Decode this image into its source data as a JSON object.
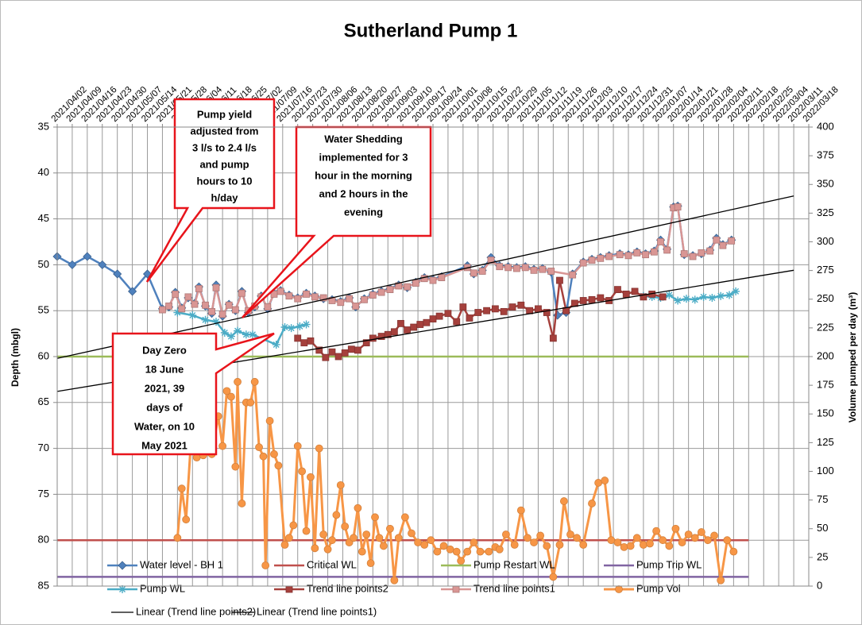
{
  "chart_data": {
    "type": "line",
    "title": "Sutherland Pump 1",
    "y_label": "Depth (mbgl)",
    "y2_label": "Volume pumped per day (m³)",
    "ylim": [
      35,
      85
    ],
    "y_reversed": true,
    "yticks": [
      35,
      40,
      45,
      50,
      55,
      60,
      65,
      70,
      75,
      80,
      85
    ],
    "y2lim": [
      0,
      400
    ],
    "y2ticks": [
      0,
      25,
      50,
      75,
      100,
      125,
      150,
      175,
      200,
      225,
      250,
      275,
      300,
      325,
      350,
      375,
      400
    ],
    "xlim": [
      "2021/04/02",
      "2022/03/18"
    ],
    "xticks": [
      "2021/04/02",
      "2021/04/09",
      "2021/04/16",
      "2021/04/23",
      "2021/04/30",
      "2021/05/07",
      "2021/05/14",
      "2021/05/21",
      "2021/05/28",
      "2021/06/04",
      "2021/06/11",
      "2021/06/18",
      "2021/06/25",
      "2021/07/02",
      "2021/07/09",
      "2021/07/16",
      "2021/07/23",
      "2021/07/30",
      "2021/08/06",
      "2021/08/13",
      "2021/08/20",
      "2021/08/27",
      "2021/09/03",
      "2021/09/10",
      "2021/09/17",
      "2021/09/24",
      "2021/10/01",
      "2021/10/08",
      "2021/10/15",
      "2021/10/22",
      "2021/10/29",
      "2021/11/05",
      "2021/11/12",
      "2021/11/19",
      "2021/11/26",
      "2021/12/03",
      "2021/12/10",
      "2021/12/17",
      "2021/12/24",
      "2021/12/31",
      "2022/01/07",
      "2022/01/14",
      "2022/01/21",
      "2022/01/28",
      "2022/02/04",
      "2022/02/11",
      "2022/02/18",
      "2022/02/25",
      "2022/03/04",
      "2022/03/11",
      "2022/03/18"
    ],
    "grid": true,
    "legend": "bottom",
    "series": [
      {
        "name": "Water level - BH 1",
        "color": "#4f81bd",
        "marker": "diamond",
        "x": [
          "2021/04/02",
          "2021/04/09",
          "2021/04/16",
          "2021/04/23",
          "2021/04/30",
          "2021/05/07",
          "2021/05/14",
          "2021/05/21",
          "2021/05/24",
          "2021/05/27",
          "2021/05/30",
          "2021/06/02",
          "2021/06/05",
          "2021/06/07",
          "2021/06/10",
          "2021/06/13",
          "2021/06/15",
          "2021/06/18",
          "2021/06/21",
          "2021/06/24",
          "2021/06/27",
          "2021/06/30",
          "2021/07/03",
          "2021/07/06",
          "2021/07/09",
          "2021/07/12",
          "2021/07/15",
          "2021/07/19",
          "2021/07/23",
          "2021/07/27",
          "2021/07/31",
          "2021/08/04",
          "2021/08/08",
          "2021/08/12",
          "2021/08/16",
          "2021/08/19",
          "2021/08/23",
          "2021/08/27",
          "2021/08/31",
          "2021/09/04",
          "2021/09/08",
          "2021/09/12",
          "2021/09/16",
          "2021/09/20",
          "2021/09/24",
          "2021/09/28",
          "2021/10/10",
          "2021/10/13",
          "2021/10/17",
          "2021/10/21",
          "2021/10/25",
          "2021/10/29",
          "2021/11/02",
          "2021/11/06",
          "2021/11/10",
          "2021/11/14",
          "2021/11/18",
          "2021/11/21",
          "2021/11/25",
          "2021/11/28",
          "2021/12/03",
          "2021/12/07",
          "2021/12/11",
          "2021/12/15",
          "2021/12/20",
          "2021/12/24",
          "2021/12/28",
          "2022/01/01",
          "2022/01/05",
          "2022/01/08",
          "2022/01/11",
          "2022/01/14",
          "2022/01/16",
          "2022/01/19",
          "2022/01/23",
          "2022/01/27",
          "2022/01/31",
          "2022/02/03",
          "2022/02/06",
          "2022/02/10"
        ],
        "values": [
          49.1,
          50,
          49.1,
          50,
          51,
          52.9,
          51,
          54.8,
          54.6,
          53,
          54.7,
          53.6,
          54.2,
          52.4,
          54.5,
          55.3,
          52.2,
          55.6,
          54.3,
          55,
          52.9,
          55.2,
          54.6,
          53.4,
          54.8,
          53.1,
          52.8,
          53.3,
          53.6,
          53.1,
          53.4,
          53.7,
          53.8,
          54,
          53.6,
          54.6,
          53.7,
          53.2,
          52.9,
          52.6,
          52.2,
          52.5,
          51.9,
          51.4,
          51.6,
          51.3,
          50.1,
          51,
          50.6,
          49.2,
          50.1,
          50.2,
          50.3,
          50.2,
          50.5,
          50.4,
          50.8,
          55.5,
          55.2,
          51,
          49.7,
          49.4,
          49.2,
          49,
          48.8,
          48.9,
          48.6,
          48.8,
          48.5,
          47.3,
          48.3,
          43.7,
          43.6,
          48.9,
          49,
          48.8,
          48.4,
          47.1,
          47.8,
          47.3
        ]
      },
      {
        "name": "Critical WL",
        "color": "#c0504d",
        "marker": "none",
        "x": [
          "2021/04/02",
          "2022/02/18"
        ],
        "values": [
          80,
          80
        ]
      },
      {
        "name": "Pump Restart WL",
        "color": "#9bbb59",
        "marker": "none",
        "x": [
          "2021/04/02",
          "2022/02/18"
        ],
        "values": [
          60,
          60
        ]
      },
      {
        "name": "Pump Trip WL",
        "color": "#8064a2",
        "marker": "none",
        "x": [
          "2021/04/02",
          "2022/02/18"
        ],
        "values": [
          84,
          84
        ]
      },
      {
        "name": "Pump WL",
        "color": "#4bacc6",
        "marker": "asterisk",
        "x": [
          "2021/05/28",
          "2021/06/04",
          "2021/06/10",
          "2021/06/15",
          "2021/06/19",
          "2021/06/22",
          "2021/06/25",
          "2021/06/29",
          "2021/07/02",
          "2021/07/13",
          "2021/07/17",
          "2021/07/20",
          "2021/07/24",
          "2021/07/27",
          "2021/10/15",
          "2021/12/31",
          "2022/01/04",
          "2022/01/08",
          "2022/01/12",
          "2022/01/16",
          "2022/01/20",
          "2022/01/24",
          "2022/01/28",
          "2022/02/01",
          "2022/02/05",
          "2022/02/09",
          "2022/02/12"
        ],
        "values": [
          55.2,
          55.5,
          56,
          56.2,
          57.4,
          57.8,
          57.2,
          57.6,
          57.6,
          58.7,
          56.8,
          56.9,
          56.7,
          56.5,
          null,
          53.4,
          53.5,
          53.6,
          53.3,
          53.9,
          53.7,
          53.8,
          53.5,
          53.6,
          53.4,
          53.3,
          52.9
        ]
      },
      {
        "name": "Trend line points2",
        "color": "#a5403c",
        "marker": "square",
        "x": [
          "2021/07/23",
          "2021/07/26",
          "2021/07/29",
          "2021/08/02",
          "2021/08/05",
          "2021/08/08",
          "2021/08/11",
          "2021/08/14",
          "2021/08/17",
          "2021/08/20",
          "2021/08/24",
          "2021/08/27",
          "2021/08/31",
          "2021/09/03",
          "2021/09/06",
          "2021/09/09",
          "2021/09/12",
          "2021/09/15",
          "2021/09/18",
          "2021/09/21",
          "2021/09/24",
          "2021/09/27",
          "2021/10/01",
          "2021/10/05",
          "2021/10/08",
          "2021/10/11",
          "2021/10/15",
          "2021/10/19",
          "2021/10/23",
          "2021/10/27",
          "2021/10/31",
          "2021/11/04",
          "2021/11/08",
          "2021/11/12",
          "2021/11/16",
          "2021/11/19",
          "2021/11/22",
          "2021/11/25",
          "2021/11/29",
          "2021/12/03",
          "2021/12/07",
          "2021/12/11",
          "2021/12/15",
          "2021/12/19",
          "2021/12/23",
          "2021/12/27",
          "2021/12/31",
          "2022/01/04",
          "2022/01/09"
        ],
        "values": [
          58,
          58.5,
          58.3,
          59.3,
          60.1,
          59.5,
          60,
          59.6,
          59.2,
          59.3,
          58.5,
          58,
          57.8,
          57.6,
          57.3,
          56.4,
          57.1,
          56.8,
          56.5,
          56.3,
          55.9,
          55.6,
          55.3,
          56.2,
          54.6,
          55.8,
          55.2,
          55,
          54.8,
          55.1,
          54.6,
          54.4,
          55,
          54.8,
          55.2,
          58,
          51.7,
          55,
          54.2,
          53.9,
          53.8,
          53.6,
          53.9,
          52.7,
          53.2,
          52.9,
          53.5,
          53.2,
          53.5
        ]
      },
      {
        "name": "Trend line points1",
        "color": "#d99694",
        "marker": "square",
        "x": [
          "2021/05/21",
          "2021/05/24",
          "2021/05/27",
          "2021/05/30",
          "2021/06/02",
          "2021/06/05",
          "2021/06/07",
          "2021/06/10",
          "2021/06/13",
          "2021/06/15",
          "2021/06/18",
          "2021/06/21",
          "2021/06/24",
          "2021/06/27",
          "2021/06/30",
          "2021/07/03",
          "2021/07/06",
          "2021/07/09",
          "2021/07/12",
          "2021/07/15",
          "2021/07/19",
          "2021/07/23",
          "2021/07/27",
          "2021/07/31",
          "2021/08/04",
          "2021/08/08",
          "2021/08/12",
          "2021/08/16",
          "2021/08/19",
          "2021/08/23",
          "2021/08/27",
          "2021/08/31",
          "2021/09/04",
          "2021/09/08",
          "2021/09/12",
          "2021/09/16",
          "2021/09/20",
          "2021/09/24",
          "2021/09/28",
          "2021/10/10",
          "2021/10/13",
          "2021/10/17",
          "2021/10/21",
          "2021/10/25",
          "2021/10/29",
          "2021/11/02",
          "2021/11/06",
          "2021/11/10",
          "2021/11/14",
          "2021/11/18",
          "2021/11/28",
          "2021/12/03",
          "2021/12/07",
          "2021/12/11",
          "2021/12/15",
          "2021/12/20",
          "2021/12/24",
          "2021/12/28",
          "2022/01/01",
          "2022/01/05",
          "2022/01/08",
          "2022/01/11",
          "2022/01/14",
          "2022/01/16",
          "2022/01/19",
          "2022/01/23",
          "2022/01/27",
          "2022/01/31",
          "2022/02/03",
          "2022/02/06",
          "2022/02/10"
        ],
        "values": [
          54.9,
          54.5,
          53.2,
          54.8,
          53.5,
          54.3,
          52.6,
          54.4,
          55.1,
          52.5,
          55.4,
          54.4,
          54.9,
          53.1,
          55,
          54.5,
          53.5,
          54.6,
          53.2,
          52.9,
          53.4,
          53.7,
          53.2,
          53.5,
          53.6,
          53.9,
          54.1,
          53.7,
          54.5,
          53.8,
          53.3,
          53,
          52.7,
          52.3,
          52.4,
          52,
          51.5,
          51.7,
          51.4,
          50.3,
          50.9,
          50.7,
          49.5,
          50.2,
          50.3,
          50.4,
          50.3,
          50.6,
          50.5,
          50.7,
          51.1,
          49.8,
          49.5,
          49.3,
          49.1,
          48.9,
          49,
          48.7,
          48.9,
          48.6,
          47.5,
          48.4,
          43.8,
          43.7,
          48.8,
          49.1,
          48.7,
          48.5,
          47.3,
          47.9,
          47.4
        ]
      },
      {
        "name": "Pump Vol",
        "color": "#f79646",
        "marker": "circle",
        "axis": "y2",
        "x": [
          "2021/05/28",
          "2021/05/30",
          "2021/06/01",
          "2021/06/03",
          "2021/06/06",
          "2021/06/09",
          "2021/06/13",
          "2021/06/16",
          "2021/06/18",
          "2021/06/20",
          "2021/06/22",
          "2021/06/24",
          "2021/06/25",
          "2021/06/27",
          "2021/06/29",
          "2021/07/01",
          "2021/07/03",
          "2021/07/05",
          "2021/07/07",
          "2021/07/08",
          "2021/07/10",
          "2021/07/12",
          "2021/07/14",
          "2021/07/17",
          "2021/07/19",
          "2021/07/21",
          "2021/07/23",
          "2021/07/25",
          "2021/07/27",
          "2021/07/29",
          "2021/07/31",
          "2021/08/02",
          "2021/08/04",
          "2021/08/06",
          "2021/08/08",
          "2021/08/10",
          "2021/08/12",
          "2021/08/14",
          "2021/08/16",
          "2021/08/18",
          "2021/08/20",
          "2021/08/22",
          "2021/08/24",
          "2021/08/26",
          "2021/08/28",
          "2021/08/30",
          "2021/09/01",
          "2021/09/04",
          "2021/09/06",
          "2021/09/08",
          "2021/09/11",
          "2021/09/14",
          "2021/09/17",
          "2021/09/20",
          "2021/09/23",
          "2021/09/26",
          "2021/09/29",
          "2021/10/02",
          "2021/10/05",
          "2021/10/07",
          "2021/10/10",
          "2021/10/13",
          "2021/10/16",
          "2021/10/20",
          "2021/10/23",
          "2021/10/25",
          "2021/10/28",
          "2021/11/01",
          "2021/11/04",
          "2021/11/07",
          "2021/11/10",
          "2021/11/13",
          "2021/11/16",
          "2021/11/19",
          "2021/11/22",
          "2021/11/24",
          "2021/11/27",
          "2021/11/30",
          "2021/12/03",
          "2021/12/07",
          "2021/12/10",
          "2021/12/13",
          "2021/12/16",
          "2021/12/19",
          "2021/12/22",
          "2021/12/25",
          "2021/12/28",
          "2021/12/31",
          "2022/01/03",
          "2022/01/06",
          "2022/01/09",
          "2022/01/12",
          "2022/01/15",
          "2022/01/18",
          "2022/01/21",
          "2022/01/24",
          "2022/01/27",
          "2022/01/30",
          "2022/02/02",
          "2022/02/05",
          "2022/02/08",
          "2022/02/11"
        ],
        "values": [
          42,
          85,
          58,
          118,
          112,
          114,
          115,
          148,
          122,
          170,
          165,
          104,
          178,
          72,
          160,
          160,
          178,
          121,
          113,
          18,
          144,
          115,
          105,
          36,
          42,
          53,
          122,
          100,
          48,
          95,
          33,
          120,
          45,
          32,
          40,
          62,
          88,
          52,
          38,
          42,
          68,
          30,
          45,
          20,
          60,
          42,
          35,
          50,
          5,
          42,
          60,
          46,
          38,
          36,
          40,
          30,
          35,
          32,
          30,
          22,
          30,
          38,
          30,
          30,
          34,
          32,
          45,
          36,
          66,
          42,
          38,
          44,
          35,
          8,
          36,
          74,
          45,
          42,
          36,
          72,
          90,
          92,
          40,
          38,
          34,
          35,
          42,
          36,
          37,
          48,
          40,
          35,
          50,
          38,
          45,
          42,
          47,
          40,
          44,
          5,
          40,
          30
        ]
      },
      {
        "name": "Linear (Trend line points2)",
        "color": "#000000",
        "marker": "none",
        "x": [
          "2021/04/02",
          "2022/03/11"
        ],
        "values": [
          63.8,
          50.6
        ]
      },
      {
        "name": "Linear (Trend line points1)",
        "color": "#000000",
        "marker": "none",
        "x": [
          "2021/04/02",
          "2022/03/11"
        ],
        "values": [
          60.2,
          42.5
        ]
      }
    ],
    "annotations": [
      {
        "lines": [
          "Pump yield",
          "adjusted from",
          "3 l/s to 2.4 l/s",
          "and pump",
          "hours to 10",
          "h/day"
        ]
      },
      {
        "lines": [
          "Water Shedding",
          "implemented for 3",
          "hour in the morning",
          "and 2 hours in the",
          "evening"
        ]
      },
      {
        "lines": [
          "Day Zero",
          "18 June",
          "2021, 39",
          "days of",
          "Water, on 10",
          "May 2021"
        ]
      }
    ]
  }
}
